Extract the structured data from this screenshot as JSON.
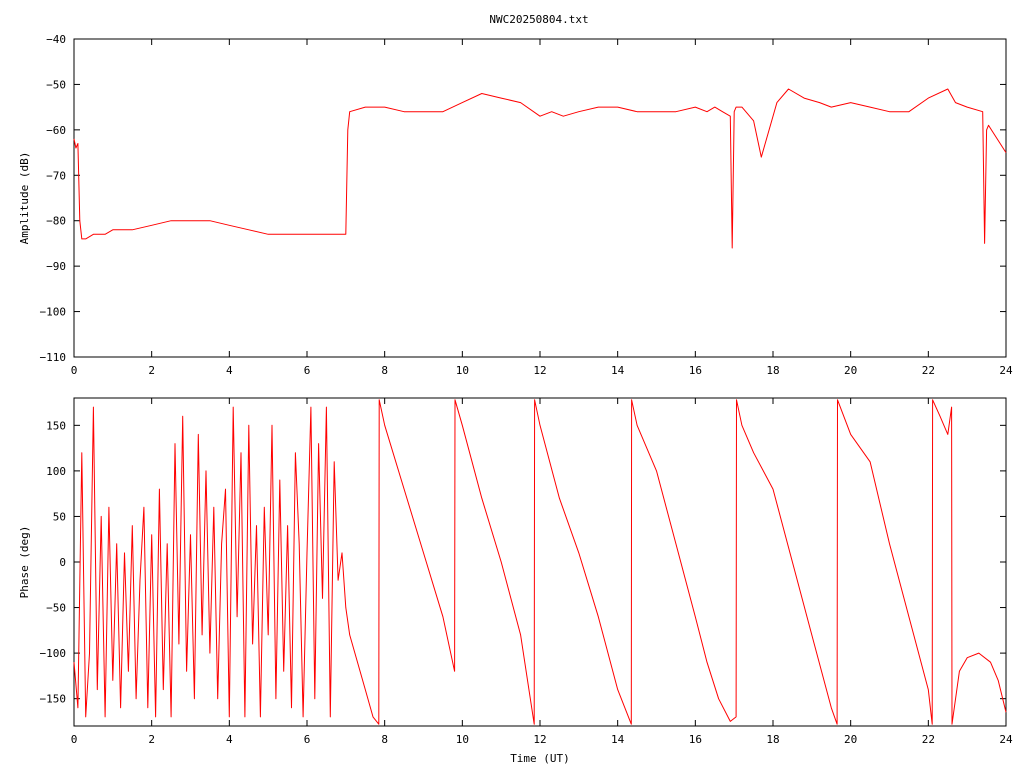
{
  "title": "NWC20250804.txt",
  "chart_data": [
    {
      "type": "line",
      "title": "NWC20250804.txt",
      "xlabel": "",
      "ylabel": "Amplitude (dB)",
      "xlim": [
        0,
        24
      ],
      "ylim": [
        -110,
        -40
      ],
      "xticks": [
        0,
        2,
        4,
        6,
        8,
        10,
        12,
        14,
        16,
        18,
        20,
        22,
        24
      ],
      "yticks": [
        -110,
        -100,
        -90,
        -80,
        -70,
        -60,
        -50,
        -40
      ],
      "grid": false,
      "color": "#ff0000",
      "series": [
        {
          "x": [
            0.0,
            0.05,
            0.1,
            0.15,
            0.2,
            0.3,
            0.5,
            0.8,
            1.0,
            1.5,
            2.0,
            2.5,
            3.0,
            3.5,
            4.0,
            4.5,
            5.0,
            5.5,
            6.0,
            6.5,
            6.9,
            7.0,
            7.05,
            7.1,
            7.5,
            8.0,
            8.5,
            9.0,
            9.5,
            10.0,
            10.5,
            11.0,
            11.5,
            12.0,
            12.3,
            12.6,
            13.0,
            13.5,
            14.0,
            14.5,
            15.0,
            15.5,
            16.0,
            16.3,
            16.5,
            16.7,
            16.9,
            16.95,
            17.0,
            17.05,
            17.2,
            17.5,
            17.7,
            17.9,
            18.1,
            18.4,
            18.8,
            19.2,
            19.5,
            20.0,
            20.5,
            21.0,
            21.5,
            22.0,
            22.5,
            22.7,
            23.0,
            23.4,
            23.45,
            23.5,
            23.55,
            23.7,
            24.0
          ],
          "values": [
            -62,
            -64,
            -63,
            -80,
            -84,
            -84,
            -83,
            -83,
            -82,
            -82,
            -81,
            -80,
            -80,
            -80,
            -81,
            -82,
            -83,
            -83,
            -83,
            -83,
            -83,
            -83,
            -60,
            -56,
            -55,
            -55,
            -56,
            -56,
            -56,
            -54,
            -52,
            -53,
            -54,
            -57,
            -56,
            -57,
            -56,
            -55,
            -55,
            -56,
            -56,
            -56,
            -55,
            -56,
            -55,
            -56,
            -57,
            -86,
            -56,
            -55,
            -55,
            -58,
            -66,
            -60,
            -54,
            -51,
            -53,
            -54,
            -55,
            -54,
            -55,
            -56,
            -56,
            -53,
            -51,
            -54,
            -55,
            -56,
            -85,
            -60,
            -59,
            -61,
            -65
          ]
        }
      ]
    },
    {
      "type": "line",
      "title": "",
      "xlabel": "Time (UT)",
      "ylabel": "Phase (deg)",
      "xlim": [
        0,
        24
      ],
      "ylim": [
        -180,
        180
      ],
      "xticks": [
        0,
        2,
        4,
        6,
        8,
        10,
        12,
        14,
        16,
        18,
        20,
        22,
        24
      ],
      "yticks": [
        -150,
        -100,
        -50,
        0,
        50,
        100,
        150
      ],
      "grid": false,
      "color": "#ff0000",
      "series": [
        {
          "x": [
            0.0,
            0.1,
            0.2,
            0.3,
            0.4,
            0.5,
            0.6,
            0.7,
            0.8,
            0.9,
            1.0,
            1.1,
            1.2,
            1.3,
            1.4,
            1.5,
            1.6,
            1.7,
            1.8,
            1.9,
            2.0,
            2.1,
            2.2,
            2.3,
            2.4,
            2.5,
            2.6,
            2.7,
            2.8,
            2.9,
            3.0,
            3.1,
            3.2,
            3.3,
            3.4,
            3.5,
            3.6,
            3.7,
            3.8,
            3.9,
            4.0,
            4.1,
            4.2,
            4.3,
            4.4,
            4.5,
            4.6,
            4.7,
            4.8,
            4.9,
            5.0,
            5.1,
            5.2,
            5.3,
            5.4,
            5.5,
            5.6,
            5.7,
            5.8,
            5.9,
            6.0,
            6.1,
            6.2,
            6.3,
            6.4,
            6.5,
            6.6,
            6.7,
            6.8,
            6.9,
            7.0,
            7.1,
            7.3,
            7.5,
            7.7,
            7.85,
            7.86,
            8.0,
            8.5,
            9.0,
            9.5,
            9.8,
            9.81,
            10.0,
            10.5,
            11.0,
            11.5,
            11.85,
            11.86,
            12.0,
            12.5,
            13.0,
            13.5,
            14.0,
            14.35,
            14.36,
            14.5,
            15.0,
            15.5,
            16.0,
            16.3,
            16.6,
            16.9,
            17.05,
            17.06,
            17.2,
            17.5,
            18.0,
            18.5,
            19.0,
            19.5,
            19.65,
            19.66,
            20.0,
            20.5,
            21.0,
            21.5,
            22.0,
            22.1,
            22.11,
            22.3,
            22.5,
            22.6,
            22.61,
            22.8,
            23.0,
            23.3,
            23.6,
            23.8,
            24.0
          ],
          "values": [
            -110,
            -160,
            120,
            -170,
            -100,
            170,
            -140,
            50,
            -170,
            60,
            -130,
            20,
            -160,
            10,
            -120,
            40,
            -150,
            -20,
            60,
            -160,
            30,
            -170,
            80,
            -140,
            20,
            -170,
            130,
            -90,
            160,
            -120,
            30,
            -150,
            140,
            -80,
            100,
            -100,
            60,
            -150,
            20,
            80,
            -170,
            170,
            -60,
            120,
            -170,
            150,
            -90,
            40,
            -170,
            60,
            -80,
            150,
            -150,
            90,
            -120,
            40,
            -160,
            120,
            20,
            -170,
            10,
            170,
            -150,
            130,
            -40,
            170,
            -170,
            110,
            -20,
            10,
            -50,
            -80,
            -110,
            -140,
            -170,
            -178,
            178,
            150,
            80,
            10,
            -60,
            -120,
            178,
            150,
            70,
            0,
            -80,
            -178,
            178,
            150,
            70,
            10,
            -60,
            -140,
            -178,
            178,
            150,
            100,
            20,
            -60,
            -110,
            -150,
            -175,
            -170,
            178,
            150,
            120,
            80,
            0,
            -80,
            -160,
            -178,
            178,
            140,
            110,
            20,
            -60,
            -140,
            -178,
            178,
            160,
            140,
            170,
            -178,
            -120,
            -105,
            -100,
            -110,
            -130,
            -165
          ]
        }
      ]
    }
  ]
}
